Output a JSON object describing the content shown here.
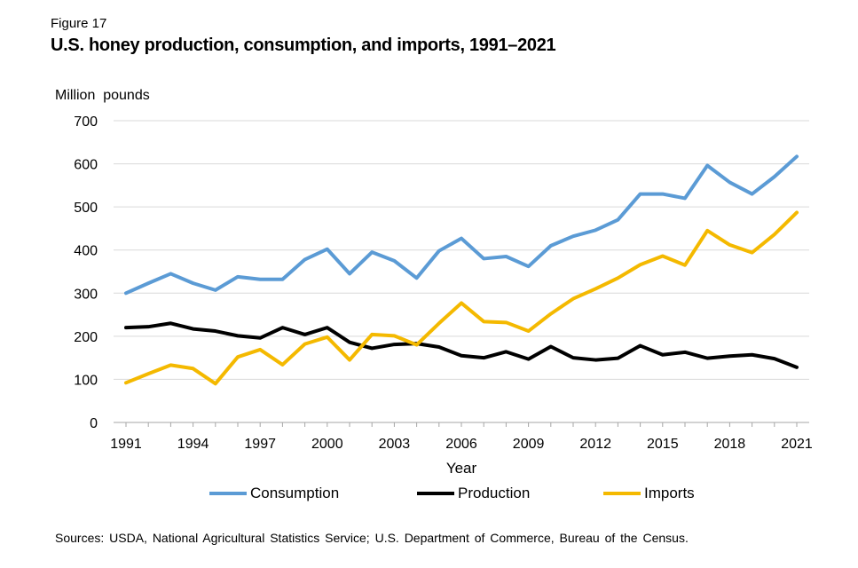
{
  "figure_label": "Figure 17",
  "title": "U.S. honey production, consumption, and imports, 1991–2021",
  "source": "Sources: USDA, National Agricultural Statistics Service; U.S. Department of Commerce, Bureau of the Census.",
  "chart_data": {
    "type": "line",
    "title": "U.S. honey production, consumption, and imports, 1991–2021",
    "ylabel": "Million  pounds",
    "xlabel": "Year",
    "ylim": [
      0,
      700
    ],
    "yticks": [
      0,
      100,
      200,
      300,
      400,
      500,
      600,
      700
    ],
    "xtick_labels": [
      "1991",
      "1994",
      "1997",
      "2000",
      "2003",
      "2006",
      "2009",
      "2012",
      "2015",
      "2018",
      "2021"
    ],
    "grid": "horizontal",
    "legend_position": "bottom",
    "x": [
      1991,
      1992,
      1993,
      1994,
      1995,
      1996,
      1997,
      1998,
      1999,
      2000,
      2001,
      2002,
      2003,
      2004,
      2005,
      2006,
      2007,
      2008,
      2009,
      2010,
      2011,
      2012,
      2013,
      2014,
      2015,
      2016,
      2017,
      2018,
      2019,
      2020,
      2021
    ],
    "series": [
      {
        "name": "Consumption",
        "color": "#5b9bd5",
        "values": [
          300,
          323,
          345,
          323,
          307,
          338,
          332,
          332,
          378,
          402,
          345,
          395,
          375,
          335,
          398,
          427,
          380,
          385,
          362,
          410,
          432,
          446,
          470,
          530,
          530,
          520,
          596,
          557,
          530,
          570,
          617
        ]
      },
      {
        "name": "Production",
        "color": "#000000",
        "values": [
          220,
          222,
          230,
          217,
          212,
          201,
          196,
          220,
          204,
          220,
          186,
          172,
          181,
          183,
          175,
          155,
          150,
          164,
          147,
          176,
          150,
          145,
          149,
          178,
          157,
          163,
          149,
          154,
          157,
          148,
          128
        ]
      },
      {
        "name": "Imports",
        "color": "#f4b900",
        "values": [
          92,
          113,
          133,
          125,
          90,
          152,
          169,
          134,
          182,
          198,
          145,
          204,
          201,
          180,
          230,
          277,
          234,
          232,
          212,
          252,
          287,
          310,
          335,
          366,
          386,
          365,
          445,
          412,
          394,
          436,
          487
        ]
      }
    ]
  }
}
